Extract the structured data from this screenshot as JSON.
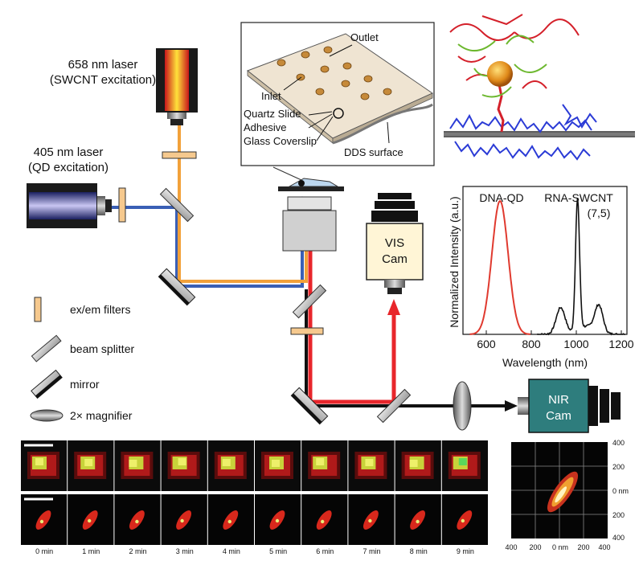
{
  "lasers": {
    "red": {
      "line1": "658 nm laser",
      "line2": "(SWCNT excitation)"
    },
    "blue": {
      "line1": "405 nm laser",
      "line2": "(QD excitation)"
    }
  },
  "inset": {
    "outlet": "Outlet",
    "inlet": "Inlet",
    "quartz": "Quartz Slide",
    "adhesive": "Adhesive",
    "coverslip": "Glass Coverslip",
    "dds": "DDS surface"
  },
  "cameras": {
    "vis": {
      "line1": "VIS",
      "line2": "Cam"
    },
    "nir": {
      "line1": "NIR",
      "line2": "Cam"
    }
  },
  "legend": {
    "filters": "ex/em filters",
    "splitter": "beam splitter",
    "mirror": "mirror",
    "magnifier": "2× magnifier"
  },
  "spectrum": {
    "ylabel": "Normalized Intensity (a.u.)",
    "xlabel": "Wavelength (nm)",
    "xticks": [
      "600",
      "800",
      "1000",
      "1200"
    ],
    "qd_label": "DNA-QD",
    "swcnt_label": "RNA-SWCNT",
    "chirality": "(7,5)",
    "qd_color": "#e03a2f",
    "swcnt_color": "#111111"
  },
  "timelapse": {
    "labels": [
      "0 min",
      "1 min",
      "2 min",
      "3 min",
      "4 min",
      "5 min",
      "6 min",
      "7 min",
      "8 min",
      "9 min"
    ]
  },
  "localization": {
    "right_ticks": [
      "400",
      "200",
      "0 nm",
      "200",
      "400"
    ],
    "bottom_ticks": [
      "400",
      "200",
      "0 nm",
      "200",
      "400"
    ]
  },
  "colors": {
    "blue_beam": "#3a5fb5",
    "orange_beam": "#f2a13a",
    "red_beam": "#e8262b",
    "nir_cam": "#2e7d7d"
  }
}
